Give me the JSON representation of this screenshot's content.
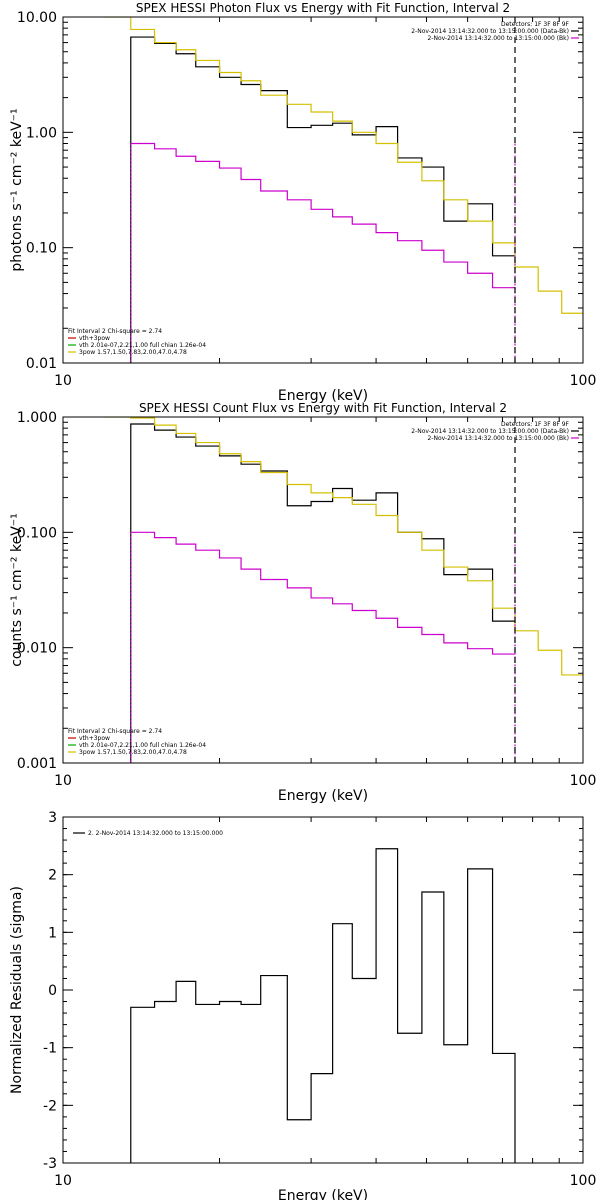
{
  "chart_data": [
    {
      "type": "line",
      "step": true,
      "title": "SPEX HESSI Photon Flux vs Energy with Fit Function, Interval 2",
      "xlabel": "Energy (keV)",
      "ylabel": "photons s⁻¹ cm⁻² keV⁻¹",
      "xscale": "log",
      "yscale": "log",
      "xlim": [
        10,
        100
      ],
      "ylim": [
        0.01,
        10
      ],
      "xticks": [
        {
          "v": 10,
          "label": "10"
        },
        {
          "v": 100,
          "label": "100"
        }
      ],
      "yticks": [
        {
          "v": 0.01,
          "label": "0.01"
        },
        {
          "v": 0.1,
          "label": "0.10"
        },
        {
          "v": 1,
          "label": "1.00"
        },
        {
          "v": 10,
          "label": "10.00"
        }
      ],
      "bin_edges": [
        12,
        13.5,
        15,
        16.5,
        18,
        20,
        22,
        24,
        27,
        30,
        33,
        36,
        40,
        44,
        49,
        54,
        60,
        67,
        74,
        82,
        91,
        100
      ],
      "series": [
        {
          "name": "data",
          "color": "#000000",
          "first_bin": 1,
          "values": [
            6.7,
            5.9,
            4.8,
            3.7,
            3.0,
            2.6,
            2.3,
            1.1,
            1.15,
            1.2,
            0.95,
            1.12,
            0.6,
            0.5,
            0.17,
            0.24,
            0.085
          ]
        },
        {
          "name": "fit",
          "color": "#d4c000",
          "first_bin": 0,
          "values": [
            10.5,
            7.8,
            6.0,
            5.2,
            4.2,
            3.3,
            2.8,
            2.1,
            1.75,
            1.5,
            1.25,
            1.0,
            0.8,
            0.55,
            0.38,
            0.26,
            0.17,
            0.11,
            0.068,
            0.042,
            0.027
          ]
        },
        {
          "name": "background",
          "color": "#cc00cc",
          "first_bin": 1,
          "values": [
            0.8,
            0.72,
            0.62,
            0.56,
            0.49,
            0.39,
            0.31,
            0.26,
            0.215,
            0.185,
            0.16,
            0.135,
            0.115,
            0.095,
            0.075,
            0.06,
            0.045
          ]
        }
      ],
      "vlines": [
        {
          "x": 13.5,
          "color": "#cc00cc",
          "dash": "2,2"
        },
        {
          "x": 74,
          "color": "#cc00cc",
          "dash": "2,2"
        },
        {
          "x": 74,
          "color": "#000000",
          "dash": "6,4",
          "full": true
        }
      ],
      "legend_right": [
        {
          "text": "Detectors: 1F 3F 8F 9F",
          "color": ""
        },
        {
          "text": "2-Nov-2014 13:14:32.000 to 13:15:00.000 (Data-Bk)",
          "color": "#000000"
        },
        {
          "text": "2-Nov-2014 13:14:32.000 to 13:15:00.000 (Bk)",
          "color": "#cc00cc"
        }
      ],
      "legend_left": [
        {
          "text": "Fit Interval 2   Chi-square = 2.74",
          "color": ""
        },
        {
          "text": "vth+3pow",
          "color": "#cc0000"
        },
        {
          "text": "vth 2.01e-07,2.21,1.00  full chian 1.26e-04",
          "color": "#00aa00"
        },
        {
          "text": "3pow 1.57,1.50,7.83,2.00,47.0,4.78",
          "color": "#d4c000"
        }
      ]
    },
    {
      "type": "line",
      "step": true,
      "title": "SPEX HESSI Count Flux vs Energy with Fit Function, Interval 2",
      "xlabel": "Energy (keV)",
      "ylabel": "counts s⁻¹ cm⁻² keV⁻¹",
      "xscale": "log",
      "yscale": "log",
      "xlim": [
        10,
        100
      ],
      "ylim": [
        0.001,
        1
      ],
      "xticks": [
        {
          "v": 10,
          "label": "10"
        },
        {
          "v": 100,
          "label": "100"
        }
      ],
      "yticks": [
        {
          "v": 0.001,
          "label": "0.001"
        },
        {
          "v": 0.01,
          "label": "0.010"
        },
        {
          "v": 0.1,
          "label": "0.100"
        },
        {
          "v": 1,
          "label": "1.000"
        }
      ],
      "bin_edges": [
        12,
        13.5,
        15,
        16.5,
        18,
        20,
        22,
        24,
        27,
        30,
        33,
        36,
        40,
        44,
        49,
        54,
        60,
        67,
        74,
        82,
        91,
        100
      ],
      "series": [
        {
          "name": "data",
          "color": "#000000",
          "first_bin": 1,
          "values": [
            0.87,
            0.77,
            0.67,
            0.56,
            0.46,
            0.39,
            0.34,
            0.17,
            0.185,
            0.24,
            0.19,
            0.22,
            0.1,
            0.088,
            0.043,
            0.048,
            0.017
          ]
        },
        {
          "name": "fit",
          "color": "#d4c000",
          "first_bin": 0,
          "values": [
            1.05,
            0.98,
            0.85,
            0.72,
            0.6,
            0.48,
            0.41,
            0.33,
            0.26,
            0.22,
            0.2,
            0.175,
            0.14,
            0.1,
            0.07,
            0.05,
            0.038,
            0.022,
            0.014,
            0.0095,
            0.0058
          ]
        },
        {
          "name": "background",
          "color": "#cc00cc",
          "first_bin": 1,
          "values": [
            0.1,
            0.09,
            0.079,
            0.07,
            0.06,
            0.048,
            0.039,
            0.033,
            0.027,
            0.024,
            0.021,
            0.018,
            0.015,
            0.013,
            0.011,
            0.0098,
            0.0088
          ]
        }
      ],
      "vlines": [
        {
          "x": 13.5,
          "color": "#cc00cc",
          "dash": "2,2"
        },
        {
          "x": 74,
          "color": "#cc00cc",
          "dash": "2,2"
        },
        {
          "x": 74,
          "color": "#000000",
          "dash": "6,4",
          "full": true
        }
      ],
      "legend_right": [
        {
          "text": "Detectors: 1F 3F 8F 9F",
          "color": ""
        },
        {
          "text": "2-Nov-2014 13:14:32.000 to 13:15:00.000 (Data-Bk)",
          "color": "#000000"
        },
        {
          "text": "2-Nov-2014 13:14:32.000 to 13:15:00.000 (Bk)",
          "color": "#cc00cc"
        }
      ],
      "legend_left": [
        {
          "text": "Fit Interval 2   Chi-square = 2.74",
          "color": ""
        },
        {
          "text": "vth+3pow",
          "color": "#cc0000"
        },
        {
          "text": "vth 2.01e-07,2.21,1.00  full chian 1.26e-04",
          "color": "#00aa00"
        },
        {
          "text": "3pow 1.57,1.50,7.83,2.00,47.0,4.78",
          "color": "#d4c000"
        }
      ]
    },
    {
      "type": "line",
      "step": true,
      "title": "",
      "xlabel": "Energy (keV)",
      "ylabel": "Normalized Residuals (sigma)",
      "xscale": "log",
      "yscale": "linear",
      "xlim": [
        10,
        100
      ],
      "ylim": [
        -3,
        3
      ],
      "xticks": [
        {
          "v": 10,
          "label": "10"
        },
        {
          "v": 100,
          "label": "100"
        }
      ],
      "yticks": [
        {
          "v": -3,
          "label": "-3"
        },
        {
          "v": -2,
          "label": "-2"
        },
        {
          "v": -1,
          "label": "-1"
        },
        {
          "v": 0,
          "label": "0"
        },
        {
          "v": 1,
          "label": "1"
        },
        {
          "v": 2,
          "label": "2"
        },
        {
          "v": 3,
          "label": "3"
        }
      ],
      "bin_edges": [
        13.5,
        15,
        16.5,
        18,
        20,
        22,
        24,
        27,
        30,
        33,
        36,
        40,
        44,
        49,
        54,
        60,
        67,
        74
      ],
      "series": [
        {
          "name": "residuals",
          "color": "#000000",
          "first_bin": 0,
          "drop_ends": true,
          "values": [
            -0.3,
            -0.2,
            0.15,
            -0.25,
            -0.2,
            -0.25,
            0.25,
            -2.25,
            -1.45,
            1.15,
            0.2,
            2.45,
            -0.75,
            1.7,
            -0.95,
            2.1,
            -1.1
          ]
        }
      ],
      "vlines": [],
      "legend_right": [],
      "legend_left": [],
      "legend_top": [
        {
          "text": "2.  2-Nov-2014 13:14:32.000 to 13:15:00.000",
          "color": "#000000"
        }
      ]
    }
  ]
}
